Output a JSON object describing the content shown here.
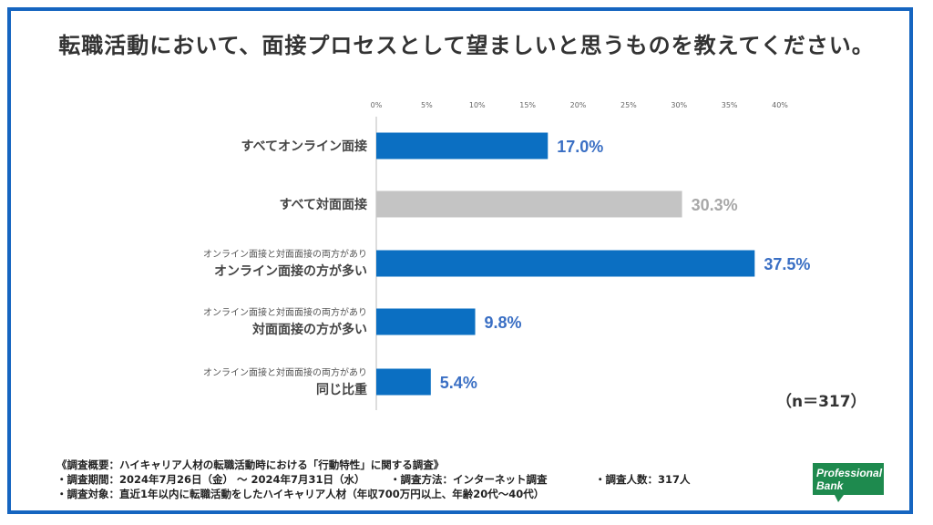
{
  "title": "転職活動において、面接プロセスとして望ましいと思うものを教えてください。",
  "sample_size": "（n＝317）",
  "notes": {
    "line1": "《調査概要：ハイキャリア人材の転職活動時における「行動特性」に関する調査》",
    "line2a": "・調査期間：2024年7月26日（金） 〜 2024年7月31日（水）",
    "line2b": "・調査方法：インターネット調査",
    "line2c": "・調査人数：317人",
    "line3": "・調査対象：直近1年以内に転職活動をしたハイキャリア人材（年収700万円以上、年齢20代〜40代）"
  },
  "logo": {
    "line1": "Professional",
    "line2": "Bank"
  },
  "colors": {
    "frame": "#1565c0",
    "bar_blue": "#0b6fc2",
    "bar_gray": "#c4c4c4",
    "label_blue": "#3a6fc4",
    "label_gray": "#a8a8a8",
    "logo_green": "#1e8a4e"
  },
  "chart_data": {
    "type": "bar",
    "orientation": "horizontal",
    "categories": [
      {
        "sub": "",
        "main": "すべてオンライン面接"
      },
      {
        "sub": "",
        "main": "すべて対面面接"
      },
      {
        "sub": "オンライン面接と対面面接の両方があり",
        "main": "オンライン面接の方が多い"
      },
      {
        "sub": "オンライン面接と対面面接の両方があり",
        "main": "対面面接の方が多い"
      },
      {
        "sub": "オンライン面接と対面面接の両方があり",
        "main": "同じ比重"
      }
    ],
    "values": [
      17.0,
      30.3,
      37.5,
      9.8,
      5.4
    ],
    "value_labels": [
      "17.0%",
      "30.3%",
      "37.5%",
      "9.8%",
      "5.4%"
    ],
    "bar_colors": [
      "#0b6fc2",
      "#c4c4c4",
      "#0b6fc2",
      "#0b6fc2",
      "#0b6fc2"
    ],
    "label_colors": [
      "#3a6fc4",
      "#a8a8a8",
      "#3a6fc4",
      "#3a6fc4",
      "#3a6fc4"
    ],
    "xlim": [
      0,
      40
    ],
    "xticks": [
      "0%",
      "5%",
      "10%",
      "15%",
      "20%",
      "25%",
      "30%",
      "35%",
      "40%"
    ],
    "grid": false
  }
}
